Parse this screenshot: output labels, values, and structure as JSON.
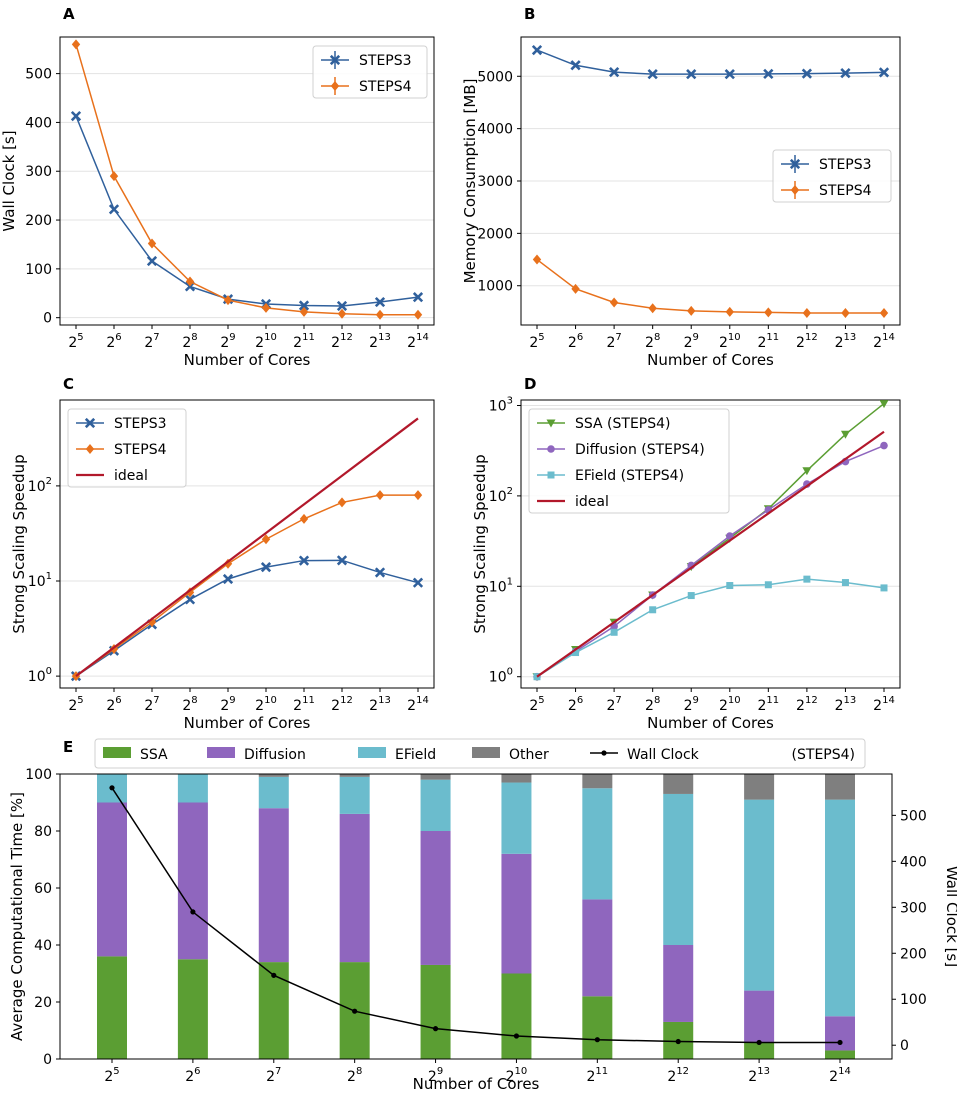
{
  "figure": {
    "panel_letters": [
      "A",
      "B",
      "C",
      "D",
      "E"
    ]
  },
  "colors": {
    "STEPS3": "#30609c",
    "STEPS4": "#e8711c",
    "ideal": "#b2182b",
    "SSA": "#5b9e33",
    "Diffusion": "#8f66be",
    "EField": "#6bbccd",
    "Other": "#7f7f7f",
    "WallClock": "#000000",
    "SSA_line": "#5b9e33",
    "Diffusion_line": "#8f66be",
    "EField_line": "#6bbccd"
  },
  "chart_data": [
    {
      "id": "A",
      "type": "line",
      "title": "",
      "xlabel": "Number of Cores",
      "ylabel": "Wall Clock [s]",
      "x_exponents": [
        5,
        6,
        7,
        8,
        9,
        10,
        11,
        12,
        13,
        14
      ],
      "x_base": "2",
      "yscale": "linear",
      "ylim": [
        -15,
        575
      ],
      "yticks": [
        0,
        100,
        200,
        300,
        400,
        500
      ],
      "legend": "top-right",
      "series": [
        {
          "name": "STEPS3",
          "marker": "x",
          "values": [
            413,
            222,
            116,
            64,
            38,
            28,
            25,
            24,
            32,
            42
          ]
        },
        {
          "name": "STEPS4",
          "marker": "diamond",
          "values": [
            560,
            290,
            152,
            74,
            36,
            20,
            12,
            8,
            6,
            6
          ]
        }
      ]
    },
    {
      "id": "B",
      "type": "line",
      "title": "",
      "xlabel": "Number of Cores",
      "ylabel": "Memory Consumption [MB]",
      "x_exponents": [
        5,
        6,
        7,
        8,
        9,
        10,
        11,
        12,
        13,
        14
      ],
      "x_base": "2",
      "yscale": "linear",
      "ylim": [
        250,
        5750
      ],
      "yticks": [
        1000,
        2000,
        3000,
        4000,
        5000
      ],
      "legend": "center-right",
      "series": [
        {
          "name": "STEPS3",
          "marker": "x",
          "values": [
            5500,
            5210,
            5080,
            5040,
            5040,
            5040,
            5045,
            5050,
            5060,
            5075
          ]
        },
        {
          "name": "STEPS4",
          "marker": "diamond",
          "values": [
            1500,
            940,
            680,
            570,
            520,
            500,
            490,
            480,
            480,
            480
          ]
        }
      ]
    },
    {
      "id": "C",
      "type": "line",
      "title": "",
      "xlabel": "Number of Cores",
      "ylabel": "Strong Scaling Speedup",
      "x_exponents": [
        5,
        6,
        7,
        8,
        9,
        10,
        11,
        12,
        13,
        14
      ],
      "x_base": "2",
      "yscale": "log",
      "ylim": [
        0.75,
        800
      ],
      "ytick_exponents": [
        0,
        1,
        2
      ],
      "legend": "top-left",
      "series": [
        {
          "name": "STEPS3",
          "marker": "x",
          "values": [
            1.0,
            1.85,
            3.5,
            6.4,
            10.5,
            14.0,
            16.4,
            16.5,
            12.3,
            9.6
          ]
        },
        {
          "name": "STEPS4",
          "marker": "diamond",
          "values": [
            1.0,
            1.93,
            3.7,
            7.6,
            15.2,
            27.5,
            45,
            67,
            80,
            80
          ]
        },
        {
          "name": "ideal",
          "marker": "none",
          "values": [
            1,
            2,
            4,
            8,
            16,
            32,
            64,
            128,
            256,
            512
          ]
        }
      ]
    },
    {
      "id": "D",
      "type": "line",
      "title": "",
      "xlabel": "Number of Cores",
      "ylabel": "Strong Scaling Speedup",
      "x_exponents": [
        5,
        6,
        7,
        8,
        9,
        10,
        11,
        12,
        13,
        14
      ],
      "x_base": "2",
      "yscale": "log",
      "ylim": [
        0.75,
        1150
      ],
      "ytick_exponents": [
        0,
        1,
        2,
        3
      ],
      "legend": "top-left",
      "series": [
        {
          "name": "SSA (STEPS4)",
          "marker": "triangle-down",
          "values": [
            1.0,
            2.0,
            4.0,
            8.0,
            16.5,
            34,
            72,
            190,
            480,
            1050
          ]
        },
        {
          "name": "Diffusion (STEPS4)",
          "marker": "circle",
          "values": [
            1.0,
            1.9,
            3.6,
            8.0,
            17,
            36,
            70,
            135,
            240,
            360
          ]
        },
        {
          "name": "EField (STEPS4)",
          "marker": "square",
          "values": [
            1.0,
            1.85,
            3.1,
            5.5,
            7.9,
            10.2,
            10.4,
            12.0,
            11.0,
            9.6
          ]
        },
        {
          "name": "ideal",
          "marker": "none",
          "values": [
            1,
            2,
            4,
            8,
            16,
            32,
            64,
            128,
            256,
            512
          ]
        }
      ]
    },
    {
      "id": "E",
      "type": "bar",
      "stacked": true,
      "title": "",
      "xlabel": "Number of Cores",
      "ylabel": "Average Computational Time [%]",
      "y2label": "Wall Clock [s]",
      "x_exponents": [
        5,
        6,
        7,
        8,
        9,
        10,
        11,
        12,
        13,
        14
      ],
      "x_base": "2",
      "ylim": [
        0,
        100
      ],
      "yticks": [
        0,
        20,
        40,
        60,
        80,
        100
      ],
      "y2lim": [
        -30,
        590
      ],
      "y2ticks": [
        0,
        100,
        200,
        300,
        400,
        500
      ],
      "legend": "top (outside)",
      "legend_suffix": "(STEPS4)",
      "series": [
        {
          "name": "SSA",
          "values": [
            36,
            35,
            34,
            34,
            33,
            30,
            22,
            13,
            6,
            3
          ]
        },
        {
          "name": "Diffusion",
          "values": [
            54,
            55,
            54,
            52,
            47,
            42,
            34,
            27,
            18,
            12
          ]
        },
        {
          "name": "EField",
          "values": [
            10,
            10,
            11,
            13,
            18,
            25,
            39,
            53,
            67,
            76
          ]
        },
        {
          "name": "Other",
          "values": [
            0,
            0,
            1,
            1,
            2,
            3,
            5,
            7,
            9,
            9
          ]
        }
      ],
      "line_series": {
        "name": "Wall Clock",
        "marker": "dot",
        "axis": "right",
        "values": [
          560,
          290,
          152,
          74,
          36,
          20,
          12,
          8,
          6,
          6
        ]
      }
    }
  ]
}
